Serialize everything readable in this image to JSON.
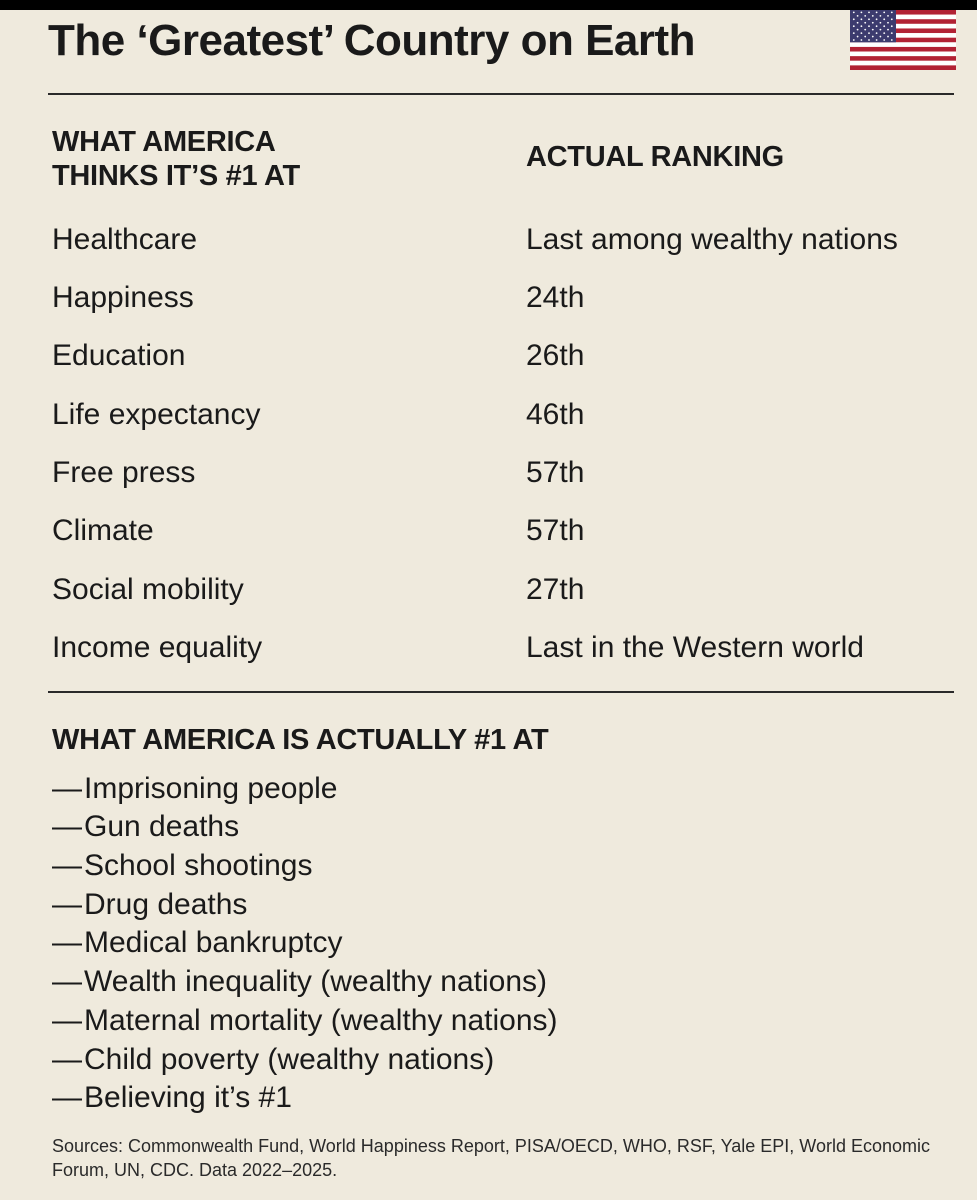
{
  "title": "The ‘Greatest’ Country on Earth",
  "flag_icon": "us-flag-icon",
  "columns": {
    "left_heading": "WHAT AMERICA THINKS IT’S #1 AT",
    "right_heading": "ACTUAL RANKING"
  },
  "rankings": [
    {
      "category": "Healthcare",
      "rank": "Last among wealthy nations"
    },
    {
      "category": "Happiness",
      "rank": "24th"
    },
    {
      "category": "Education",
      "rank": "26th"
    },
    {
      "category": "Life expectancy",
      "rank": "46th"
    },
    {
      "category": "Free press",
      "rank": "57th"
    },
    {
      "category": "Climate",
      "rank": "57th"
    },
    {
      "category": "Social mobility",
      "rank": "27th"
    },
    {
      "category": "Income equality",
      "rank": "Last in the Western world"
    }
  ],
  "actually_first": {
    "heading": "WHAT AMERICA IS ACTUALLY #1 AT",
    "dash": "—",
    "items": [
      "Imprisoning people",
      "Gun deaths",
      "School shootings",
      "Drug deaths",
      "Medical bankruptcy",
      "Wealth inequality (wealthy nations)",
      "Maternal mortality (wealthy nations)",
      "Child poverty (wealthy nations)",
      "Believing it’s #1"
    ]
  },
  "sources": "Sources: Commonwealth Fund, World Happiness Report, PISA/OECD, WHO, RSF, Yale EPI, World Economic Forum, UN, CDC. Data 2022–2025.",
  "colors": {
    "background": "#efeadd",
    "text": "#1a1a1a",
    "flag_red": "#b22234",
    "flag_blue": "#3c3b6e"
  }
}
